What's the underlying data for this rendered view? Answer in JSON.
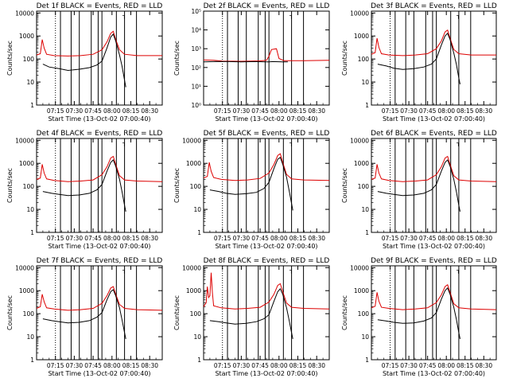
{
  "chart_data": {
    "type": "line",
    "layout": "3x3 grid",
    "start_time": "13-Oct-02 07:00:40",
    "xlabel": "Start Time (13-Oct-02 07:00:40)",
    "ylabel": "Counts/sec",
    "x_tick_labels": [
      "07:15",
      "07:30",
      "07:45",
      "08:00",
      "08:15",
      "08:30"
    ],
    "x_ticks_min": [
      15,
      30,
      45,
      60,
      75,
      90
    ],
    "xlim_min": [
      0,
      100
    ],
    "yscale": "log",
    "ylim": [
      1,
      12000
    ],
    "y_tick_labels": [
      "1",
      "10",
      "100",
      "1000",
      "10000"
    ],
    "y_tick_labels_exp": [
      "10⁰",
      "10¹",
      "10²",
      "10³",
      "10⁴",
      "10⁵"
    ],
    "series_colors": {
      "events": "#000000",
      "lld": "#dd0000"
    },
    "dotted_line_min": 15,
    "solid_lines_min": [
      19,
      27.5,
      34,
      43.5,
      49,
      52,
      63.5,
      70,
      79.5
    ],
    "legend_box_text": "┐",
    "panels": [
      {
        "title": "Det 1f BLACK = Events, RED = LLD",
        "ylabels": "linear",
        "events": [
          [
            5,
            60
          ],
          [
            10,
            45
          ],
          [
            18,
            38
          ],
          [
            25,
            32
          ],
          [
            34,
            36
          ],
          [
            42,
            42
          ],
          [
            48,
            55
          ],
          [
            52,
            80
          ],
          [
            56,
            300
          ],
          [
            59,
            900
          ],
          [
            61,
            1200
          ],
          [
            63,
            600
          ],
          [
            66,
            150
          ],
          [
            68,
            50
          ],
          [
            70,
            12
          ],
          [
            71,
            6
          ]
        ],
        "lld": [
          [
            0,
            150
          ],
          [
            3,
            170
          ],
          [
            4.5,
            700
          ],
          [
            6,
            300
          ],
          [
            8,
            160
          ],
          [
            14,
            140
          ],
          [
            25,
            135
          ],
          [
            35,
            140
          ],
          [
            45,
            160
          ],
          [
            52,
            250
          ],
          [
            56,
            550
          ],
          [
            59,
            1300
          ],
          [
            61,
            1600
          ],
          [
            63,
            700
          ],
          [
            66,
            250
          ],
          [
            70,
            160
          ],
          [
            80,
            140
          ],
          [
            100,
            140
          ]
        ]
      },
      {
        "title": "Det 2f BLACK = Events, RED = LLD",
        "ylabels": "exp",
        "events": [
          [
            0,
            200
          ],
          [
            10,
            210
          ],
          [
            20,
            205
          ],
          [
            30,
            200
          ],
          [
            40,
            205
          ],
          [
            50,
            200
          ],
          [
            52,
            200
          ],
          [
            55,
            205
          ],
          [
            63,
            200
          ],
          [
            67,
            200
          ]
        ],
        "lld": [
          [
            0,
            250
          ],
          [
            8,
            240
          ],
          [
            15,
            220
          ],
          [
            30,
            215
          ],
          [
            45,
            225
          ],
          [
            50,
            240
          ],
          [
            52,
            400
          ],
          [
            54,
            900
          ],
          [
            58,
            1000
          ],
          [
            60,
            300
          ],
          [
            64,
            230
          ],
          [
            80,
            230
          ],
          [
            100,
            240
          ]
        ]
      },
      {
        "title": "Det 3f BLACK = Events, RED = LLD",
        "ylabels": "linear",
        "events": [
          [
            5,
            60
          ],
          [
            12,
            50
          ],
          [
            18,
            40
          ],
          [
            25,
            35
          ],
          [
            34,
            38
          ],
          [
            42,
            45
          ],
          [
            48,
            60
          ],
          [
            52,
            100
          ],
          [
            56,
            400
          ],
          [
            59,
            1000
          ],
          [
            61,
            1300
          ],
          [
            63,
            700
          ],
          [
            66,
            180
          ],
          [
            68,
            60
          ],
          [
            70,
            15
          ],
          [
            71,
            8
          ]
        ],
        "lld": [
          [
            0,
            160
          ],
          [
            3,
            190
          ],
          [
            4.5,
            800
          ],
          [
            6,
            320
          ],
          [
            8,
            170
          ],
          [
            14,
            150
          ],
          [
            25,
            140
          ],
          [
            35,
            150
          ],
          [
            45,
            170
          ],
          [
            52,
            280
          ],
          [
            56,
            600
          ],
          [
            59,
            1500
          ],
          [
            61,
            1800
          ],
          [
            63,
            800
          ],
          [
            66,
            260
          ],
          [
            70,
            170
          ],
          [
            80,
            150
          ],
          [
            100,
            150
          ]
        ]
      },
      {
        "title": "Det 4f BLACK = Events, RED = LLD",
        "ylabels": "linear",
        "events": [
          [
            5,
            60
          ],
          [
            12,
            50
          ],
          [
            18,
            45
          ],
          [
            25,
            40
          ],
          [
            34,
            42
          ],
          [
            42,
            50
          ],
          [
            48,
            70
          ],
          [
            52,
            120
          ],
          [
            56,
            450
          ],
          [
            59,
            1100
          ],
          [
            61,
            1400
          ],
          [
            63,
            750
          ],
          [
            66,
            200
          ],
          [
            68,
            60
          ],
          [
            70,
            15
          ],
          [
            71,
            8
          ]
        ],
        "lld": [
          [
            0,
            200
          ],
          [
            3,
            230
          ],
          [
            4.5,
            900
          ],
          [
            6,
            380
          ],
          [
            8,
            210
          ],
          [
            14,
            180
          ],
          [
            25,
            160
          ],
          [
            35,
            170
          ],
          [
            45,
            190
          ],
          [
            52,
            320
          ],
          [
            56,
            700
          ],
          [
            59,
            1700
          ],
          [
            61,
            2000
          ],
          [
            63,
            900
          ],
          [
            66,
            290
          ],
          [
            70,
            190
          ],
          [
            80,
            170
          ],
          [
            100,
            160
          ]
        ]
      },
      {
        "title": "Det 5f BLACK = Events, RED = LLD",
        "ylabels": "linear",
        "events": [
          [
            5,
            70
          ],
          [
            12,
            60
          ],
          [
            18,
            50
          ],
          [
            25,
            45
          ],
          [
            34,
            48
          ],
          [
            42,
            55
          ],
          [
            48,
            80
          ],
          [
            52,
            150
          ],
          [
            56,
            600
          ],
          [
            59,
            1500
          ],
          [
            61,
            1800
          ],
          [
            63,
            900
          ],
          [
            66,
            250
          ],
          [
            68,
            70
          ],
          [
            70,
            18
          ],
          [
            71,
            9
          ]
        ],
        "lld": [
          [
            0,
            230
          ],
          [
            3,
            270
          ],
          [
            4.5,
            1100
          ],
          [
            6,
            450
          ],
          [
            8,
            240
          ],
          [
            14,
            200
          ],
          [
            25,
            180
          ],
          [
            35,
            190
          ],
          [
            45,
            220
          ],
          [
            52,
            380
          ],
          [
            56,
            900
          ],
          [
            59,
            2200
          ],
          [
            61,
            2600
          ],
          [
            63,
            1100
          ],
          [
            66,
            330
          ],
          [
            70,
            210
          ],
          [
            80,
            190
          ],
          [
            100,
            180
          ]
        ]
      },
      {
        "title": "Det 6f BLACK = Events, RED = LLD",
        "ylabels": "linear",
        "events": [
          [
            5,
            60
          ],
          [
            12,
            50
          ],
          [
            18,
            45
          ],
          [
            25,
            40
          ],
          [
            34,
            42
          ],
          [
            42,
            50
          ],
          [
            48,
            70
          ],
          [
            52,
            120
          ],
          [
            56,
            450
          ],
          [
            59,
            1100
          ],
          [
            61,
            1400
          ],
          [
            63,
            750
          ],
          [
            66,
            200
          ],
          [
            68,
            60
          ],
          [
            70,
            15
          ],
          [
            71,
            8
          ]
        ],
        "lld": [
          [
            0,
            200
          ],
          [
            3,
            230
          ],
          [
            4.5,
            900
          ],
          [
            6,
            380
          ],
          [
            8,
            210
          ],
          [
            14,
            180
          ],
          [
            25,
            160
          ],
          [
            35,
            170
          ],
          [
            45,
            190
          ],
          [
            52,
            320
          ],
          [
            56,
            700
          ],
          [
            59,
            1700
          ],
          [
            61,
            2000
          ],
          [
            63,
            900
          ],
          [
            66,
            290
          ],
          [
            70,
            190
          ],
          [
            80,
            170
          ],
          [
            100,
            160
          ]
        ]
      },
      {
        "title": "Det 7f BLACK = Events, RED = LLD",
        "ylabels": "linear",
        "events": [
          [
            5,
            60
          ],
          [
            12,
            50
          ],
          [
            18,
            45
          ],
          [
            25,
            40
          ],
          [
            34,
            42
          ],
          [
            42,
            50
          ],
          [
            48,
            70
          ],
          [
            52,
            110
          ],
          [
            56,
            400
          ],
          [
            59,
            900
          ],
          [
            61,
            1100
          ],
          [
            63,
            600
          ],
          [
            66,
            180
          ],
          [
            68,
            55
          ],
          [
            70,
            15
          ],
          [
            71,
            8
          ]
        ],
        "lld": [
          [
            0,
            170
          ],
          [
            3,
            200
          ],
          [
            4.5,
            700
          ],
          [
            6,
            330
          ],
          [
            8,
            180
          ],
          [
            14,
            160
          ],
          [
            25,
            140
          ],
          [
            35,
            150
          ],
          [
            45,
            170
          ],
          [
            52,
            280
          ],
          [
            56,
            600
          ],
          [
            59,
            1300
          ],
          [
            61,
            1500
          ],
          [
            63,
            700
          ],
          [
            66,
            250
          ],
          [
            70,
            170
          ],
          [
            80,
            150
          ],
          [
            100,
            140
          ]
        ]
      },
      {
        "title": "Det 8f BLACK = Events, RED = LLD",
        "ylabels": "linear",
        "events": [
          [
            5,
            50
          ],
          [
            12,
            45
          ],
          [
            18,
            40
          ],
          [
            25,
            35
          ],
          [
            34,
            38
          ],
          [
            42,
            45
          ],
          [
            48,
            60
          ],
          [
            52,
            90
          ],
          [
            56,
            350
          ],
          [
            59,
            900
          ],
          [
            61,
            1200
          ],
          [
            63,
            700
          ],
          [
            66,
            180
          ],
          [
            68,
            55
          ],
          [
            70,
            15
          ],
          [
            71,
            8
          ]
        ],
        "lld": [
          [
            0,
            200
          ],
          [
            2,
            300
          ],
          [
            3,
            1500
          ],
          [
            4,
            500
          ],
          [
            5,
            600
          ],
          [
            6,
            6000
          ],
          [
            7,
            800
          ],
          [
            8,
            220
          ],
          [
            14,
            180
          ],
          [
            25,
            160
          ],
          [
            35,
            170
          ],
          [
            45,
            190
          ],
          [
            52,
            320
          ],
          [
            56,
            700
          ],
          [
            59,
            1700
          ],
          [
            61,
            2000
          ],
          [
            63,
            900
          ],
          [
            66,
            290
          ],
          [
            70,
            190
          ],
          [
            80,
            170
          ],
          [
            100,
            160
          ]
        ]
      },
      {
        "title": "Det 9f BLACK = Events, RED = LLD",
        "ylabels": "linear",
        "events": [
          [
            5,
            55
          ],
          [
            12,
            48
          ],
          [
            18,
            42
          ],
          [
            25,
            38
          ],
          [
            34,
            40
          ],
          [
            42,
            48
          ],
          [
            48,
            65
          ],
          [
            52,
            110
          ],
          [
            56,
            420
          ],
          [
            59,
            1000
          ],
          [
            61,
            1300
          ],
          [
            63,
            700
          ],
          [
            66,
            190
          ],
          [
            68,
            58
          ],
          [
            70,
            15
          ],
          [
            71,
            8
          ]
        ],
        "lld": [
          [
            0,
            180
          ],
          [
            3,
            210
          ],
          [
            4.5,
            850
          ],
          [
            6,
            350
          ],
          [
            8,
            190
          ],
          [
            14,
            170
          ],
          [
            25,
            150
          ],
          [
            35,
            160
          ],
          [
            45,
            180
          ],
          [
            52,
            300
          ],
          [
            56,
            650
          ],
          [
            59,
            1500
          ],
          [
            61,
            1800
          ],
          [
            63,
            850
          ],
          [
            66,
            270
          ],
          [
            70,
            180
          ],
          [
            80,
            160
          ],
          [
            100,
            150
          ]
        ]
      }
    ]
  }
}
